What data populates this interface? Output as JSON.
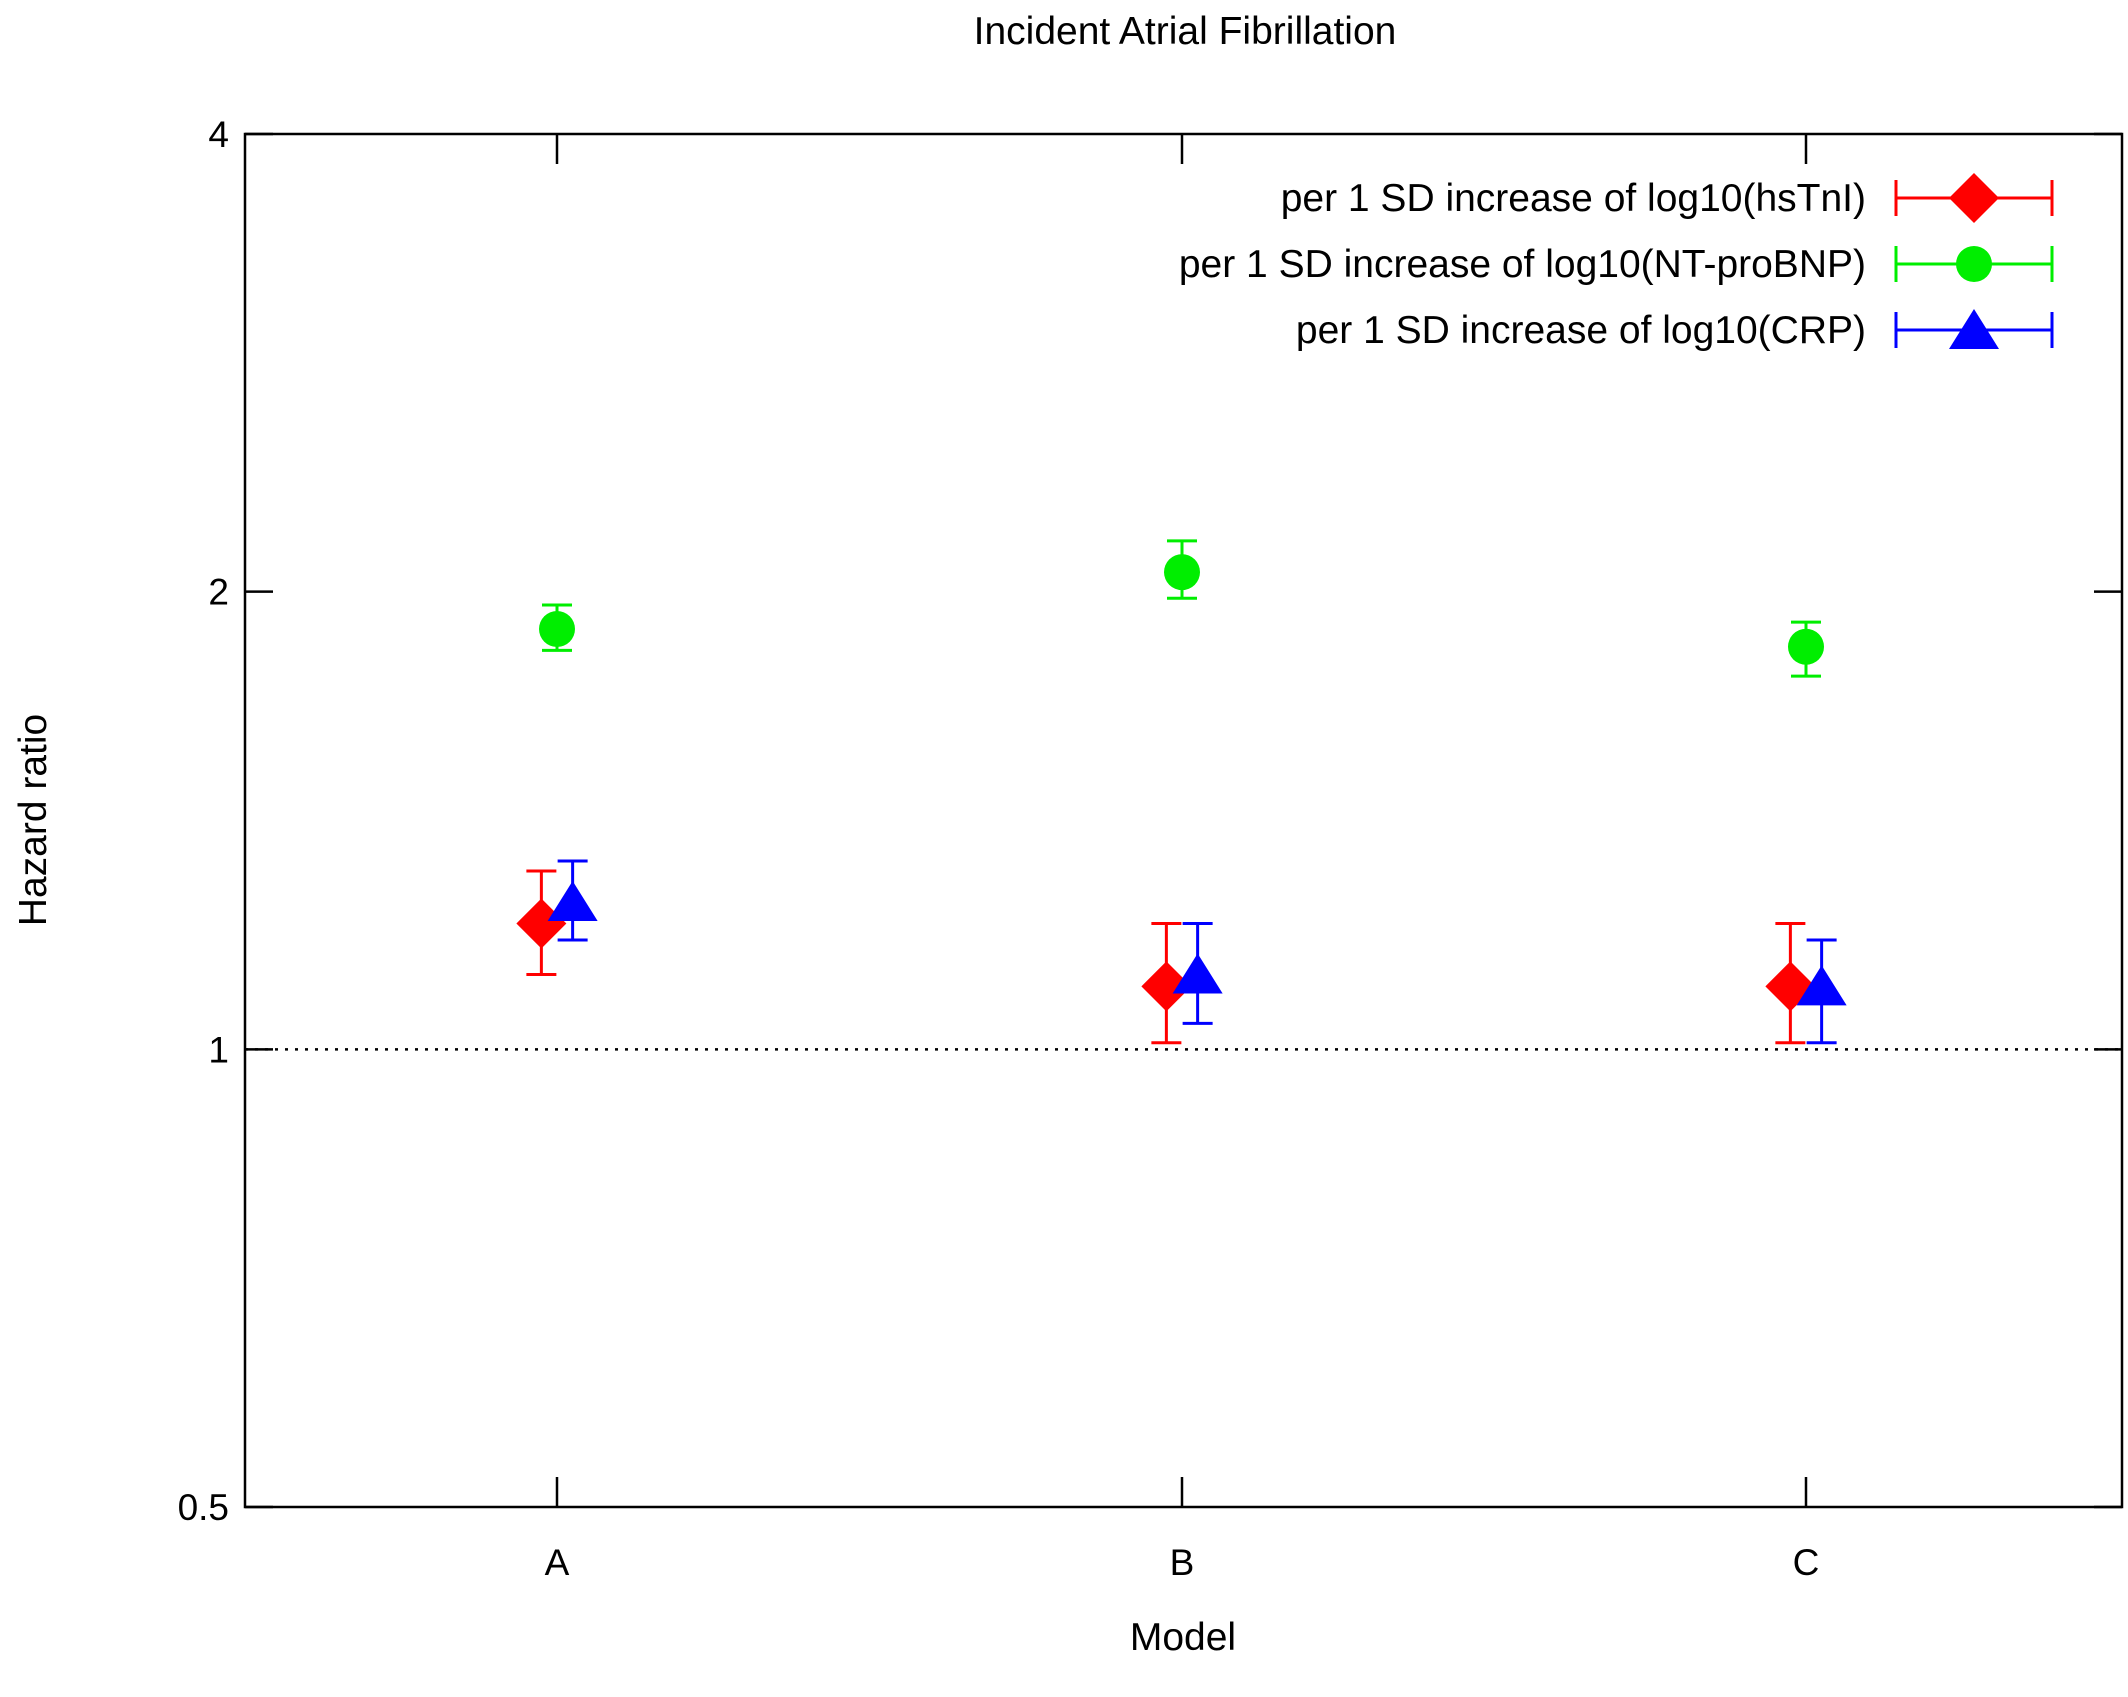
{
  "chart_data": {
    "type": "scatter",
    "title": "Incident Atrial Fibrillation",
    "xlabel": "Model",
    "ylabel": "Hazard ratio",
    "y_scale": "log2",
    "ylim": [
      0.5,
      4
    ],
    "y_ticks": [
      "0.5",
      "1",
      "2",
      "4"
    ],
    "categories": [
      "A",
      "B",
      "C"
    ],
    "reference_line": {
      "y": 1,
      "style": "dotted"
    },
    "grid": false,
    "legend_position": "top-right",
    "series": [
      {
        "name": "per 1 SD increase of log10(hsTnI)",
        "color": "#ff0000",
        "marker": "diamond",
        "offset": -0.025,
        "values": [
          1.21,
          1.1,
          1.1
        ],
        "lower": [
          1.12,
          1.01,
          1.01
        ],
        "upper": [
          1.31,
          1.21,
          1.21
        ]
      },
      {
        "name": "per 1 SD increase of log10(NT-proBNP)",
        "color": "#00ee00",
        "marker": "circle",
        "offset": 0,
        "values": [
          1.89,
          2.06,
          1.84
        ],
        "lower": [
          1.83,
          1.98,
          1.76
        ],
        "upper": [
          1.96,
          2.16,
          1.91
        ]
      },
      {
        "name": "per  1 SD increase of log10(CRP)",
        "color": "#0000ff",
        "marker": "triangle",
        "offset": 0.025,
        "values": [
          1.25,
          1.12,
          1.1
        ],
        "lower": [
          1.18,
          1.04,
          1.01
        ],
        "upper": [
          1.33,
          1.21,
          1.18
        ]
      }
    ]
  }
}
